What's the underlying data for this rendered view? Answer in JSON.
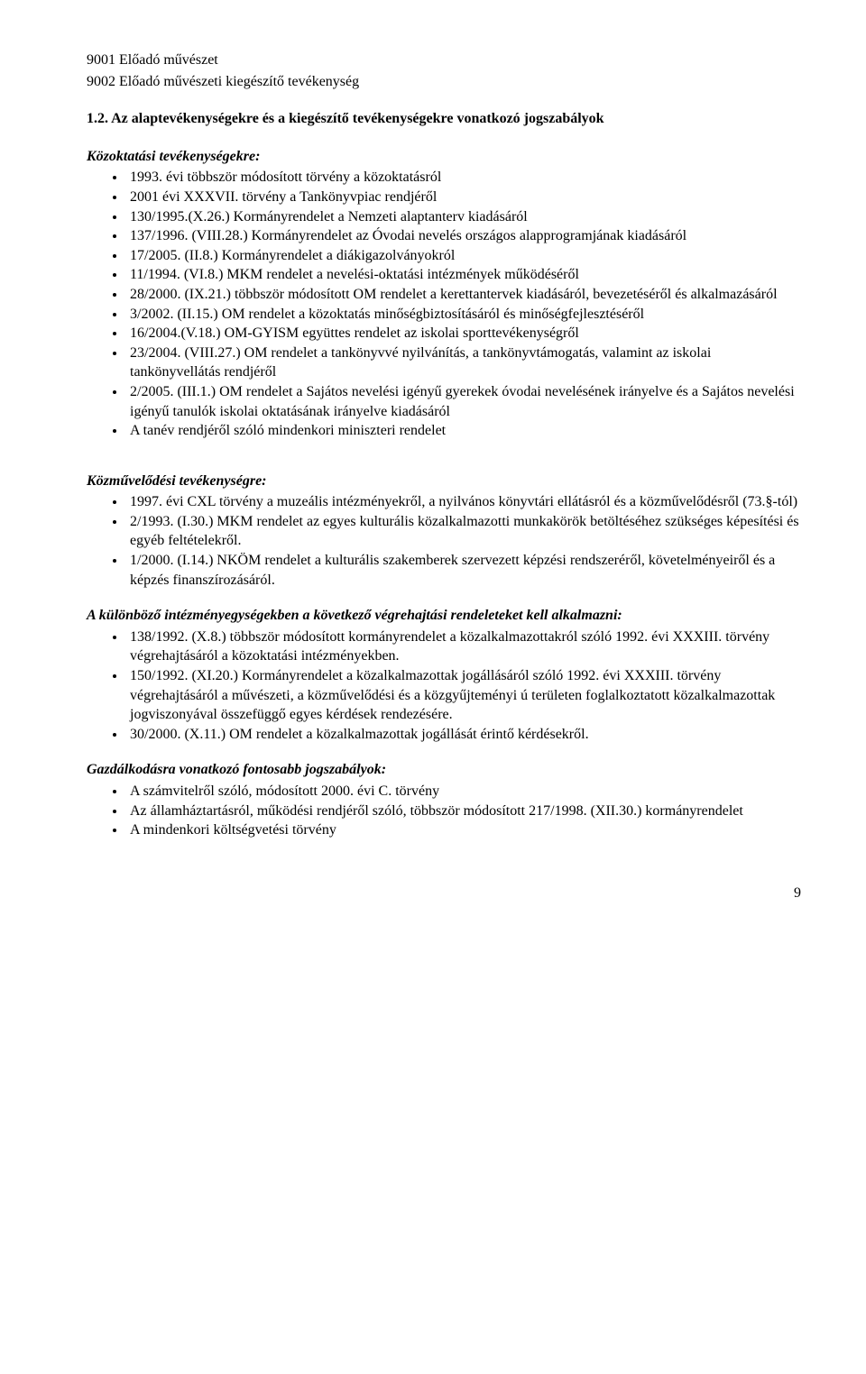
{
  "top_lines": [
    "9001 Előadó művészet",
    "9002 Előadó művészeti kiegészítő tevékenység"
  ],
  "section1": {
    "heading": "1.2. Az alaptevékenységekre és a kiegészítő tevékenységekre vonatkozó jogszabályok",
    "subhead": "Közoktatási tevékenységekre:",
    "items": [
      "1993. évi többször módosított törvény a közoktatásról",
      "2001 évi XXXVII. törvény a Tankönyvpiac rendjéről",
      "130/1995.(X.26.) Kormányrendelet a Nemzeti alaptanterv kiadásáról",
      "137/1996. (VIII.28.) Kormányrendelet az Óvodai nevelés országos alapprogramjának kiadásáról",
      "17/2005. (II.8.) Kormányrendelet a diákigazolványokról",
      "11/1994. (VI.8.) MKM rendelet a nevelési-oktatási intézmények működéséről",
      "28/2000. (IX.21.) többször módosított OM rendelet a kerettantervek kiadásáról, bevezetéséről és alkalmazásáról",
      "3/2002. (II.15.) OM rendelet a közoktatás minőségbiztosításáról és minőségfejlesztéséről",
      "16/2004.(V.18.) OM-GYISM együttes rendelet az iskolai sporttevékenységről",
      "23/2004. (VIII.27.) OM rendelet a tankönyvvé nyilvánítás, a tankönyvtámogatás, valamint az iskolai tankönyvellátás rendjéről",
      "2/2005. (III.1.) OM rendelet a Sajátos nevelési igényű gyerekek óvodai nevelésének irányelve és a Sajátos nevelési igényű tanulók iskolai oktatásának irányelve kiadásáról",
      "A tanév rendjéről szóló mindenkori miniszteri rendelet"
    ]
  },
  "section2": {
    "subhead": "Közművelődési tevékenységre:",
    "items": [
      "1997. évi CXL törvény a muzeális intézményekről, a nyilvános könyvtári ellátásról és a közművelődésről (73.§-tól)",
      "2/1993. (I.30.) MKM rendelet az egyes kulturális közalkalmazotti munkakörök betöltéséhez szükséges képesítési és egyéb feltételekről.",
      "1/2000. (I.14.) NKÖM rendelet  a kulturális szakemberek szervezett képzési rendszeréről, követelményeiről és a képzés finanszírozásáról."
    ]
  },
  "section3": {
    "subhead": "A különböző intézményegységekben a következő végrehajtási rendeleteket kell alkalmazni:",
    "items": [
      "138/1992. (X.8.) többször módosított kormányrendelet a közalkalmazottakról szóló 1992. évi XXXIII. törvény végrehajtásáról a közoktatási intézményekben.",
      "150/1992. (XI.20.) Kormányrendelet a közalkalmazottak jogállásáról szóló 1992. évi XXXIII. törvény végrehajtásáról a művészeti,  a közművelődési és a közgyűjteményi ú területen foglalkoztatott közalkalmazottak jogviszonyával összefüggő egyes kérdések rendezésére.",
      "30/2000. (X.11.) OM rendelet a közalkalmazottak jogállását érintő kérdésekről."
    ]
  },
  "section4": {
    "subhead": "Gazdálkodásra vonatkozó fontosabb jogszabályok:",
    "items": [
      "A számvitelről szóló, módosított 2000. évi C. törvény",
      "Az államháztartásról, működési rendjéről szóló, többször módosított 217/1998. (XII.30.) kormányrendelet",
      "A mindenkori költségvetési törvény"
    ]
  },
  "page_number": "9"
}
